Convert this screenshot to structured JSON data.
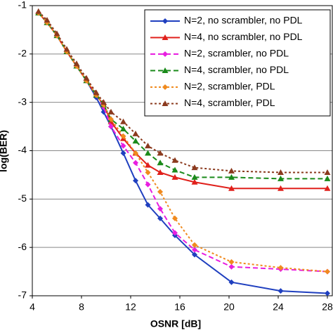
{
  "chart_data": {
    "type": "line",
    "x_label": "OSNR [dB]",
    "y_label": "log(BER)",
    "x": [
      4.5,
      5.2,
      6.0,
      6.8,
      7.6,
      8.4,
      9.2,
      9.8,
      10.4,
      11.4,
      12.4,
      13.4,
      14.4,
      15.6,
      17.2,
      20.2,
      24.2,
      28
    ],
    "xlim": [
      4,
      28.4
    ],
    "xticks": [
      4,
      8,
      12,
      16,
      20,
      24,
      28
    ],
    "ylim": [
      -7,
      -1
    ],
    "yticks": [
      -7,
      -6,
      -5,
      -4,
      -3,
      -2,
      -1
    ],
    "grid": true,
    "legend": "upper right",
    "series": [
      {
        "name": "N=2, no scrambler, no PDL",
        "color": "#1f3fbf",
        "marker": "diamond",
        "line_style": "solid",
        "values": [
          -1.15,
          -1.35,
          -1.62,
          -1.95,
          -2.25,
          -2.55,
          -2.9,
          -3.2,
          -3.5,
          -4.05,
          -4.62,
          -5.12,
          -5.4,
          -5.75,
          -6.15,
          -6.72,
          -6.9,
          -6.95
        ]
      },
      {
        "name": "N=4, no scrambler, no PDL",
        "color": "#e0201b",
        "marker": "triangle",
        "line_style": "solid",
        "values": [
          -1.15,
          -1.35,
          -1.62,
          -1.95,
          -2.25,
          -2.55,
          -2.85,
          -3.05,
          -3.4,
          -3.75,
          -4.05,
          -4.3,
          -4.45,
          -4.55,
          -4.65,
          -4.78,
          -4.78,
          -4.78
        ]
      },
      {
        "name": "N=2, scrambler, no PDL",
        "color": "#e81ee0",
        "marker": "diamond",
        "line_style": "dashed",
        "values": [
          -1.15,
          -1.35,
          -1.62,
          -1.95,
          -2.25,
          -2.55,
          -2.85,
          -3.1,
          -3.5,
          -3.9,
          -4.25,
          -4.7,
          -5.2,
          -5.7,
          -6.05,
          -6.4,
          -6.45,
          -6.5
        ]
      },
      {
        "name": "N=4, scrambler, no PDL",
        "color": "#1a8a1a",
        "marker": "triangle",
        "line_style": "dashed",
        "values": [
          -1.15,
          -1.35,
          -1.62,
          -1.95,
          -2.25,
          -2.55,
          -2.85,
          -3.05,
          -3.35,
          -3.55,
          -3.8,
          -4.05,
          -4.25,
          -4.4,
          -4.55,
          -4.55,
          -4.58,
          -4.58
        ]
      },
      {
        "name": "N=2, scrambler, PDL",
        "color": "#f08a1e",
        "marker": "diamond",
        "line_style": "dotted",
        "values": [
          -1.15,
          -1.35,
          -1.62,
          -1.95,
          -2.25,
          -2.55,
          -2.85,
          -3.05,
          -3.35,
          -3.7,
          -4.05,
          -4.45,
          -4.85,
          -5.4,
          -5.95,
          -6.3,
          -6.42,
          -6.5
        ]
      },
      {
        "name": "N=4, scrambler, PDL",
        "color": "#8b3a1e",
        "marker": "triangle",
        "line_style": "dotted",
        "values": [
          -1.12,
          -1.3,
          -1.58,
          -1.9,
          -2.2,
          -2.5,
          -2.8,
          -3.0,
          -3.2,
          -3.4,
          -3.65,
          -3.9,
          -4.05,
          -4.2,
          -4.35,
          -4.42,
          -4.45,
          -4.45
        ]
      }
    ]
  }
}
